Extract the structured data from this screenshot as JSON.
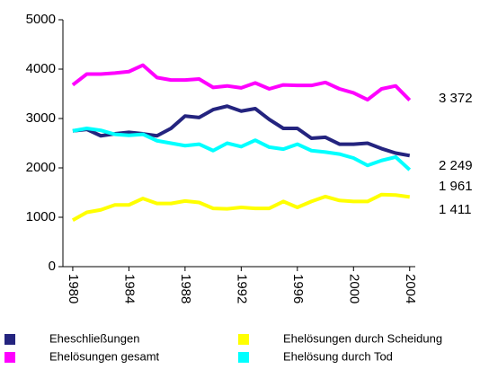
{
  "chart_data": {
    "type": "line",
    "x": [
      1980,
      1981,
      1982,
      1983,
      1984,
      1985,
      1986,
      1987,
      1988,
      1989,
      1990,
      1991,
      1992,
      1993,
      1994,
      1995,
      1996,
      1997,
      1998,
      1999,
      2000,
      2001,
      2002,
      2003,
      2004
    ],
    "xlim": [
      1979.3,
      2004.4
    ],
    "xticks": [
      1980,
      1984,
      1988,
      1992,
      1996,
      2000,
      2004
    ],
    "ylim": [
      0,
      5000
    ],
    "yticks": [
      0,
      1000,
      2000,
      3000,
      4000,
      5000
    ],
    "series": [
      {
        "name": "Eheschließungen",
        "color": "#24247f",
        "values": [
          2750,
          2780,
          2650,
          2690,
          2720,
          2690,
          2650,
          2800,
          3050,
          3020,
          3180,
          3250,
          3150,
          3200,
          2980,
          2800,
          2800,
          2600,
          2620,
          2480,
          2480,
          2500,
          2390,
          2300,
          2249
        ],
        "value_labels": [
          null,
          null,
          null,
          null,
          null,
          null,
          null,
          null,
          null,
          null,
          null,
          null,
          null,
          null,
          null,
          null,
          null,
          null,
          null,
          null,
          null,
          null,
          null,
          null,
          "2 249"
        ]
      },
      {
        "name": "Ehelösungen durch Scheidung",
        "color": "#ffff00",
        "values": [
          940,
          1100,
          1150,
          1250,
          1250,
          1380,
          1280,
          1280,
          1330,
          1300,
          1180,
          1170,
          1200,
          1180,
          1180,
          1320,
          1200,
          1320,
          1420,
          1340,
          1320,
          1320,
          1460,
          1450,
          1411
        ],
        "value_labels": [
          null,
          null,
          null,
          null,
          null,
          null,
          null,
          null,
          null,
          null,
          null,
          null,
          null,
          null,
          null,
          null,
          null,
          null,
          null,
          null,
          null,
          null,
          null,
          null,
          "1 411"
        ]
      },
      {
        "name": "Ehelösungen gesamt",
        "color": "#ff00ff",
        "values": [
          3680,
          3900,
          3900,
          3920,
          3950,
          4080,
          3830,
          3780,
          3780,
          3800,
          3630,
          3660,
          3620,
          3720,
          3600,
          3680,
          3670,
          3670,
          3730,
          3600,
          3520,
          3380,
          3600,
          3660,
          3372
        ],
        "value_labels": [
          null,
          null,
          null,
          null,
          null,
          null,
          null,
          null,
          null,
          null,
          null,
          null,
          null,
          null,
          null,
          null,
          null,
          null,
          null,
          null,
          null,
          null,
          null,
          null,
          "3 372"
        ]
      },
      {
        "name": "Ehelösung durch Tod",
        "color": "#00ffff",
        "values": [
          2750,
          2800,
          2760,
          2680,
          2660,
          2680,
          2550,
          2500,
          2450,
          2480,
          2350,
          2500,
          2430,
          2560,
          2420,
          2380,
          2480,
          2350,
          2320,
          2280,
          2200,
          2050,
          2150,
          2220,
          1961
        ],
        "value_labels": [
          null,
          null,
          null,
          null,
          null,
          null,
          null,
          null,
          null,
          null,
          null,
          null,
          null,
          null,
          null,
          null,
          null,
          null,
          null,
          null,
          null,
          null,
          null,
          null,
          "1 961"
        ]
      }
    ]
  }
}
